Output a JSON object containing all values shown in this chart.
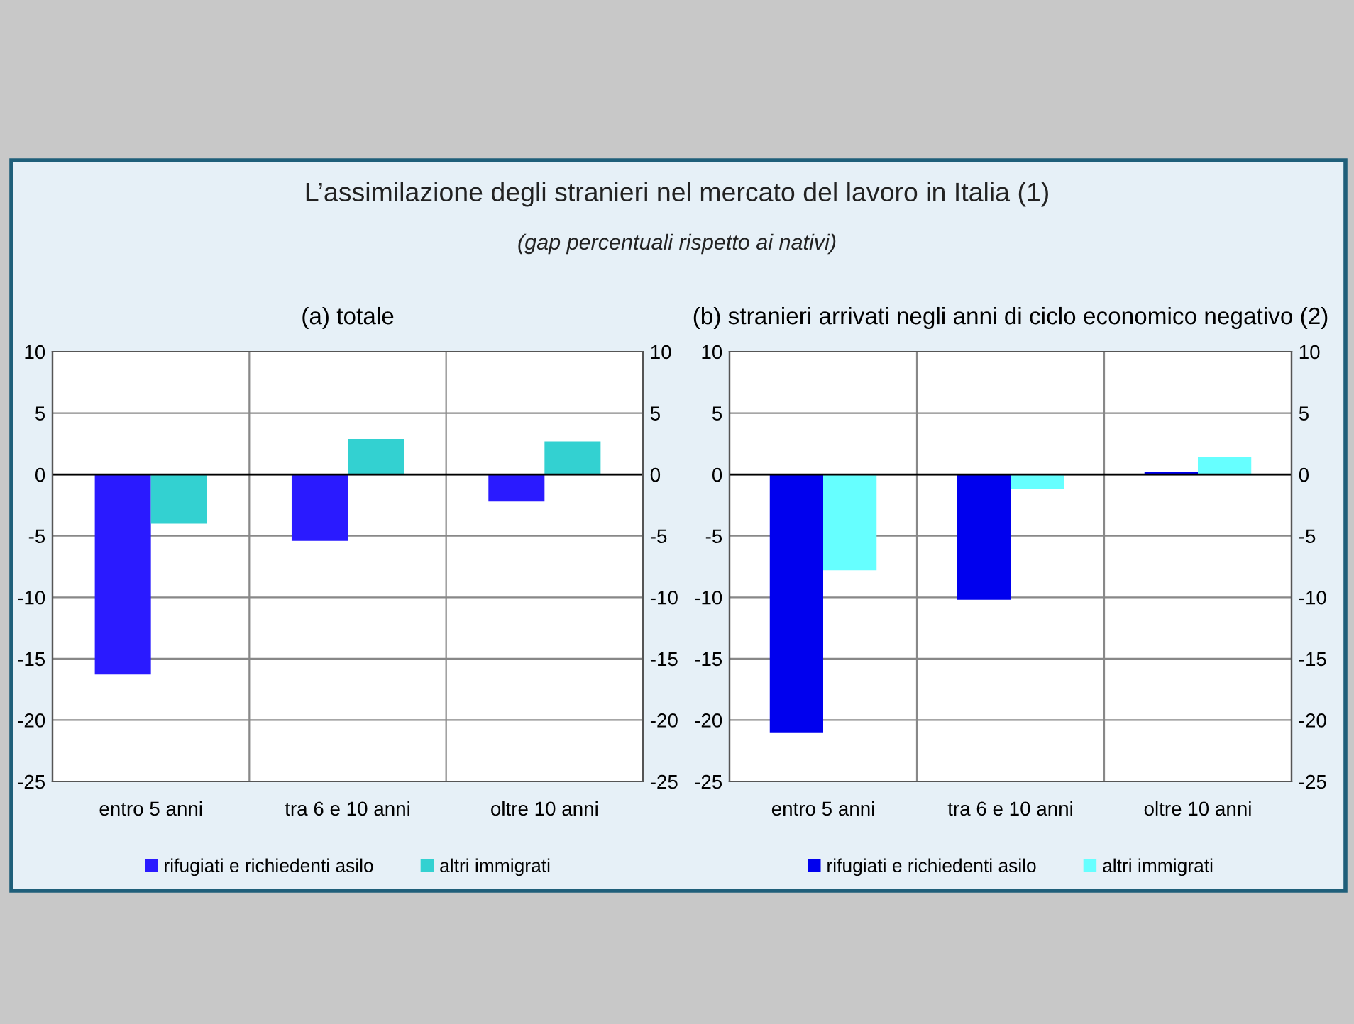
{
  "chart_data": [
    {
      "type": "bar",
      "title": "(a) totale",
      "categories": [
        "entro 5 anni",
        "tra 6 e 10 anni",
        "oltre 10 anni"
      ],
      "series": [
        {
          "name": "rifugiati e richiedenti asilo",
          "color": "#2a1aff",
          "values": [
            -16.3,
            -5.4,
            -2.2
          ]
        },
        {
          "name": "altri immigrati",
          "color": "#33d1d1",
          "values": [
            -4.0,
            2.9,
            2.7
          ]
        }
      ],
      "ylim": [
        -25,
        10
      ],
      "yticks": [
        -25,
        -20,
        -15,
        -10,
        -5,
        0,
        5,
        10
      ],
      "y2lim": [
        -25,
        10
      ],
      "y2ticks": [
        -25,
        -20,
        -15,
        -10,
        -5,
        0,
        5,
        10
      ],
      "grid": true,
      "legend": "bottom",
      "annotations": [
        "L’assimilazione degli stranieri nel mercato del lavoro in Italia (1)",
        "(gap percentuali rispetto ai nativi)"
      ]
    },
    {
      "type": "bar",
      "title": "(b) stranieri arrivati negli anni di ciclo economico negativo (2)",
      "categories": [
        "entro 5 anni",
        "tra 6 e 10 anni",
        "oltre 10 anni"
      ],
      "series": [
        {
          "name": "rifugiati e richiedenti asilo",
          "color": "#0000ee",
          "values": [
            -21.0,
            -10.2,
            0.2
          ]
        },
        {
          "name": "altri immigrati",
          "color": "#66ffff",
          "values": [
            -7.8,
            -1.2,
            1.4
          ]
        }
      ],
      "ylim": [
        -25,
        10
      ],
      "yticks": [
        -25,
        -20,
        -15,
        -10,
        -5,
        0,
        5,
        10
      ],
      "y2lim": [
        -25,
        10
      ],
      "y2ticks": [
        -25,
        -20,
        -15,
        -10,
        -5,
        0,
        5,
        10
      ],
      "grid": true,
      "legend": "bottom"
    }
  ]
}
